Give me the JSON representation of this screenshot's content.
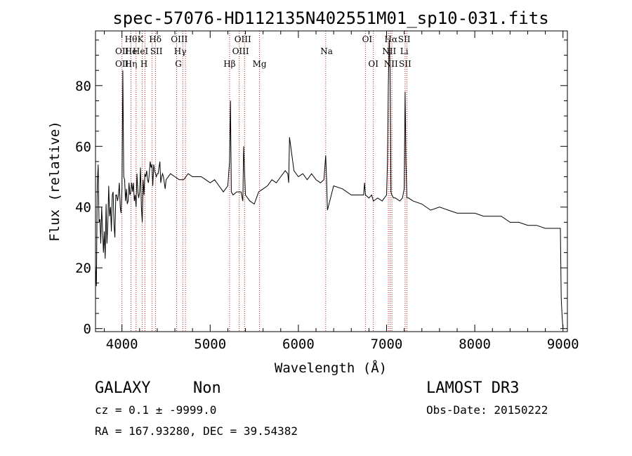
{
  "chart_data": {
    "type": "line",
    "title": "spec-57076-HD112135N402551M01_sp10-031.fits",
    "xlabel": "Wavelength (Å)",
    "ylabel": "Flux (relative)",
    "xlim": [
      3700,
      9050
    ],
    "ylim": [
      -1,
      98
    ],
    "xticks": [
      4000,
      5000,
      6000,
      7000,
      8000,
      9000
    ],
    "yticks": [
      0,
      20,
      40,
      60,
      80
    ],
    "x_minor_step": 200,
    "y_minor_step": 5,
    "grid": false,
    "legend": "none",
    "series": [
      {
        "name": "flux",
        "x": [
          3700,
          3710,
          3720,
          3730,
          3740,
          3750,
          3760,
          3770,
          3780,
          3790,
          3800,
          3810,
          3820,
          3830,
          3840,
          3850,
          3860,
          3870,
          3880,
          3890,
          3900,
          3910,
          3920,
          3930,
          3940,
          3950,
          3960,
          3970,
          3980,
          3990,
          4000,
          4010,
          4020,
          4030,
          4040,
          4050,
          4060,
          4070,
          4080,
          4090,
          4100,
          4110,
          4120,
          4130,
          4140,
          4150,
          4160,
          4170,
          4180,
          4190,
          4200,
          4210,
          4220,
          4230,
          4240,
          4250,
          4260,
          4270,
          4280,
          4290,
          4300,
          4310,
          4320,
          4330,
          4340,
          4350,
          4360,
          4370,
          4380,
          4390,
          4400,
          4410,
          4420,
          4430,
          4440,
          4450,
          4460,
          4470,
          4480,
          4490,
          4500,
          4550,
          4600,
          4650,
          4700,
          4750,
          4800,
          4850,
          4900,
          4950,
          5000,
          5050,
          5100,
          5150,
          5200,
          5220,
          5230,
          5240,
          5260,
          5300,
          5350,
          5370,
          5380,
          5400,
          5450,
          5500,
          5550,
          5600,
          5650,
          5700,
          5750,
          5800,
          5850,
          5880,
          5890,
          5900,
          5950,
          6000,
          6050,
          6100,
          6150,
          6200,
          6250,
          6290,
          6310,
          6320,
          6330,
          6400,
          6500,
          6600,
          6700,
          6740,
          6750,
          6760,
          6800,
          6830,
          6850,
          6900,
          6950,
          7000,
          7010,
          7020,
          7030,
          7040,
          7050,
          7060,
          7080,
          7100,
          7150,
          7180,
          7200,
          7210,
          7220,
          7230,
          7250,
          7300,
          7400,
          7500,
          7600,
          7700,
          7800,
          7900,
          8000,
          8100,
          8200,
          8300,
          8400,
          8500,
          8600,
          8700,
          8800,
          8900,
          8970,
          8980,
          8990,
          9000
        ],
        "y": [
          21,
          14,
          47,
          54,
          35,
          36,
          28,
          40,
          33,
          25,
          32,
          23,
          41,
          28,
          35,
          47,
          37,
          40,
          32,
          44,
          45,
          34,
          30,
          44,
          44,
          42,
          44,
          48,
          40,
          38,
          46,
          85,
          50,
          49,
          42,
          46,
          41,
          42,
          48,
          44,
          45,
          48,
          45,
          48,
          42,
          44,
          40,
          51,
          45,
          43,
          45,
          53,
          40,
          35,
          49,
          44,
          51,
          50,
          52,
          49,
          48,
          51,
          55,
          53,
          54,
          47,
          54,
          52,
          51,
          50,
          51,
          51,
          53,
          55,
          48,
          50,
          51,
          50,
          48,
          46,
          49,
          51,
          50,
          49,
          49,
          51,
          50,
          50,
          50,
          49,
          48,
          49,
          47,
          45,
          47,
          55,
          75,
          45,
          44,
          45,
          45,
          42,
          60,
          44,
          42,
          41,
          45,
          46,
          47,
          49,
          48,
          50,
          52,
          51,
          48,
          63,
          52,
          50,
          51,
          49,
          51,
          49,
          48,
          49,
          57,
          49,
          39,
          47,
          46,
          44,
          44,
          44,
          48,
          44,
          43,
          44,
          42,
          43,
          42,
          44,
          55,
          80,
          95,
          85,
          45,
          44,
          43,
          43,
          42,
          43,
          46,
          78,
          55,
          43,
          43,
          42,
          41,
          39,
          40,
          39,
          38,
          38,
          38,
          37,
          37,
          37,
          35,
          35,
          34,
          34,
          33,
          33,
          33,
          10,
          4,
          0
        ],
        "color": "#000000"
      }
    ],
    "lines": [
      {
        "w": 4000,
        "label": "OII",
        "row": 2
      },
      {
        "w": 4000,
        "label": "OII",
        "row": 3
      },
      {
        "w": 4102,
        "label": "Hθ",
        "row": 1
      },
      {
        "w": 4102,
        "label": "He",
        "row": 2
      },
      {
        "w": 4102,
        "label": "Hη",
        "row": 3
      },
      {
        "w": 4210,
        "label": "K",
        "row": 1
      },
      {
        "w": 4210,
        "label": "HeI",
        "row": 2
      },
      {
        "w": 4250,
        "label": "H",
        "row": 3
      },
      {
        "w": 4378,
        "label": "Hδ",
        "row": 1
      },
      {
        "w": 4390,
        "label": "SII",
        "row": 2
      },
      {
        "w": 4650,
        "label": "OIII",
        "row": 1
      },
      {
        "w": 4660,
        "label": "Hγ",
        "row": 2
      },
      {
        "w": 4640,
        "label": "G",
        "row": 3
      },
      {
        "w": 5220,
        "label": "Hβ",
        "row": 3
      },
      {
        "w": 5370,
        "label": "OIII",
        "row": 1
      },
      {
        "w": 5345,
        "label": "OIII",
        "row": 2
      },
      {
        "w": 5560,
        "label": "Mg",
        "row": 3
      },
      {
        "w": 6320,
        "label": "Na",
        "row": 2
      },
      {
        "w": 6780,
        "label": "OI",
        "row": 1
      },
      {
        "w": 6850,
        "label": "OI",
        "row": 3
      },
      {
        "w": 7050,
        "label": "Hα",
        "row": 1
      },
      {
        "w": 7030,
        "label": "NII",
        "row": 2
      },
      {
        "w": 7050,
        "label": "NII",
        "row": 3
      },
      {
        "w": 7200,
        "label": "SII",
        "row": 1
      },
      {
        "w": 7200,
        "label": "Li",
        "row": 2
      },
      {
        "w": 7210,
        "label": "SII",
        "row": 3
      }
    ],
    "marker_lines": [
      4000,
      4102,
      4160,
      4230,
      4260,
      4340,
      4380,
      4620,
      4690,
      4720,
      5220,
      5330,
      5390,
      5560,
      6310,
      6760,
      6850,
      7020,
      7040,
      7060,
      7210,
      7230
    ]
  },
  "footer": {
    "class_label": "GALAXY",
    "subclass_label": "Non",
    "cz_text": "cz = 0.1 ± -9999.0",
    "radec_text": "RA = 167.93280, DEC =  39.54382",
    "survey_label": "LAMOST DR3",
    "obsdate_text": "Obs-Date: 20150222"
  }
}
